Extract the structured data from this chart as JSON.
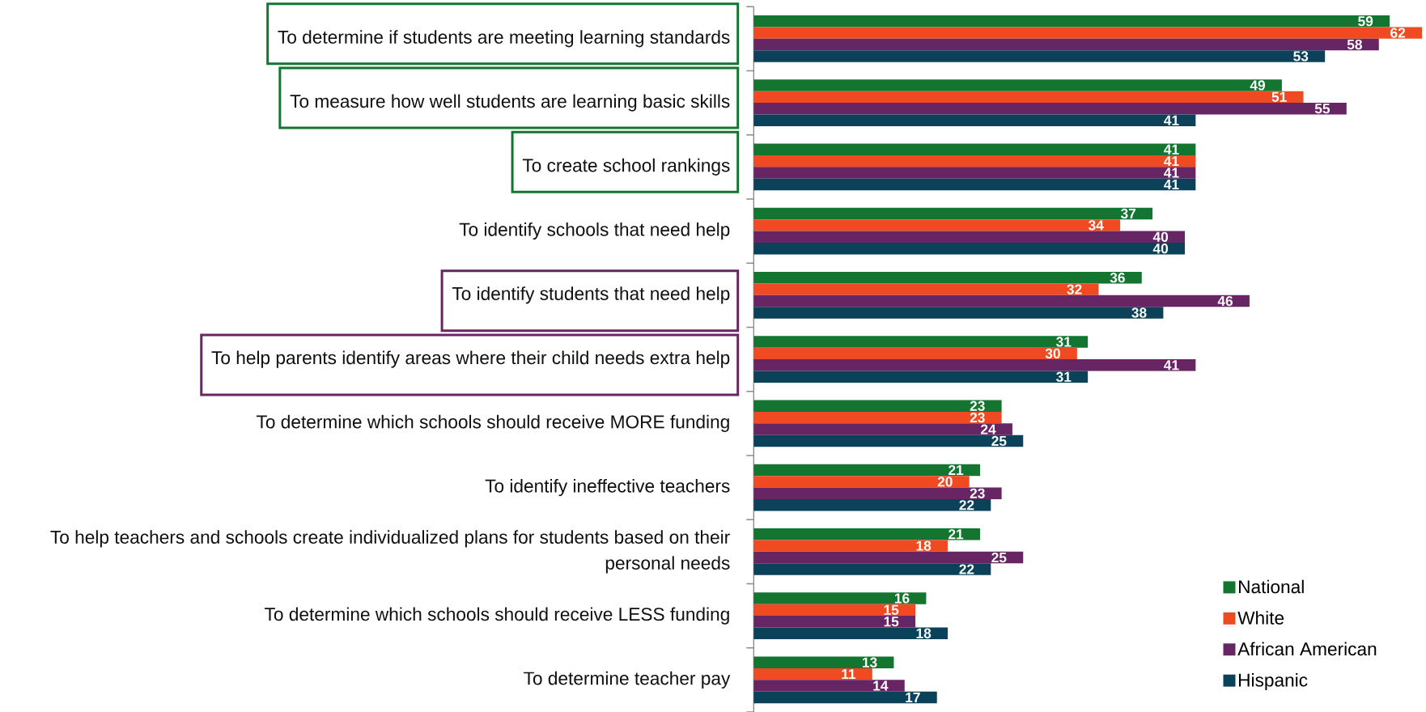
{
  "chart_data": {
    "type": "bar",
    "orientation": "horizontal",
    "categories": [
      "To determine if students are meeting learning standards",
      "To measure how well students are learning basic skills",
      "To create school rankings",
      "To identify schools that need help",
      "To identify students that need help",
      "To help parents identify areas where their child needs extra help",
      "To determine which schools should receive MORE funding",
      "To identify ineffective teachers",
      "To help teachers and schools create individualized plans for students based on their personal needs",
      "To determine which schools should receive LESS funding",
      "To determine teacher pay"
    ],
    "series": [
      {
        "name": "National",
        "color": "#137530",
        "values": [
          59,
          49,
          41,
          37,
          36,
          31,
          23,
          21,
          21,
          16,
          13
        ]
      },
      {
        "name": "White",
        "color": "#f04a23",
        "values": [
          62,
          51,
          41,
          34,
          32,
          30,
          23,
          20,
          18,
          15,
          11
        ]
      },
      {
        "name": "African American",
        "color": "#672564",
        "values": [
          58,
          55,
          41,
          40,
          46,
          41,
          24,
          23,
          25,
          15,
          14
        ]
      },
      {
        "name": "Hispanic",
        "color": "#0b4259",
        "values": [
          53,
          41,
          41,
          40,
          38,
          31,
          25,
          22,
          22,
          18,
          17
        ]
      }
    ],
    "data_labels": true,
    "legend": "bottom right"
  }
}
